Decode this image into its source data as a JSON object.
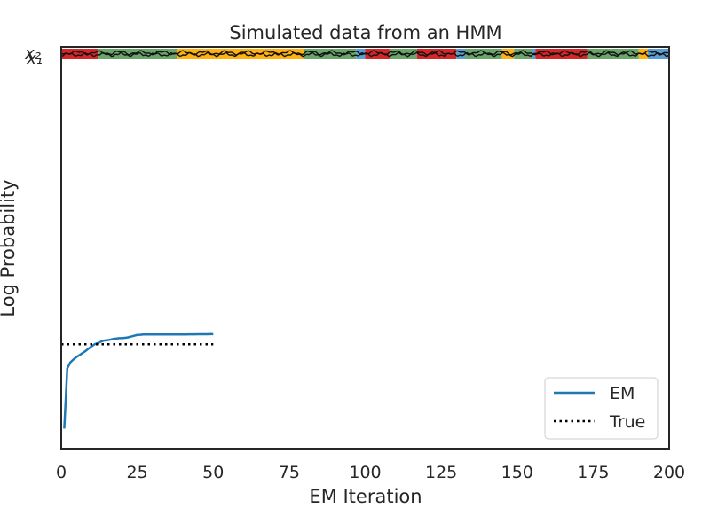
{
  "chart_data": {
    "type": "line",
    "title": "Simulated data from an HMM",
    "xlabel": "EM Iteration",
    "ylabel": "Log Probability",
    "xlim": [
      0,
      200
    ],
    "ylim": [
      0,
      1
    ],
    "xticks": [
      "0",
      "25",
      "50",
      "75",
      "100",
      "125",
      "150",
      "175",
      "200"
    ],
    "yticks_overlapping": [
      "$x_1$",
      "$x_2$"
    ],
    "yticks_display": [
      "x₁",
      "x₂"
    ],
    "grid": false,
    "legend_position": "lower-right",
    "series": [
      {
        "name": "EM",
        "style": "solid",
        "color": "#1f77b4",
        "x": [
          1,
          2,
          3,
          4,
          5,
          6,
          7,
          8,
          9,
          10,
          11,
          12,
          13,
          14,
          15,
          16,
          17,
          18,
          19,
          20,
          21,
          22,
          23,
          24,
          25,
          26,
          27,
          28,
          29,
          30,
          31,
          32,
          33,
          34,
          35,
          36,
          37,
          38,
          39,
          40,
          41,
          42,
          43,
          44,
          45,
          46,
          47,
          48,
          49,
          50
        ],
        "y": [
          0.05,
          0.2,
          0.215,
          0.222,
          0.228,
          0.233,
          0.238,
          0.243,
          0.249,
          0.255,
          0.26,
          0.263,
          0.266,
          0.269,
          0.27,
          0.271,
          0.273,
          0.274,
          0.275,
          0.275,
          0.276,
          0.277,
          0.279,
          0.281,
          0.283,
          0.2835,
          0.284,
          0.284,
          0.284,
          0.284,
          0.284,
          0.284,
          0.284,
          0.284,
          0.284,
          0.284,
          0.284,
          0.284,
          0.2842,
          0.2842,
          0.2844,
          0.2845,
          0.2846,
          0.2846,
          0.2847,
          0.2847,
          0.2848,
          0.2848,
          0.2849,
          0.285
        ]
      },
      {
        "name": "True",
        "style": "dotted",
        "color": "#000000",
        "x": [
          0,
          50
        ],
        "y": [
          0.26,
          0.26
        ]
      }
    ],
    "state_band": {
      "colors": [
        "#d62728",
        "#ffb20f",
        "#5a9fd4",
        "#6aa56a"
      ],
      "segments": [
        {
          "start": 0,
          "end": 12,
          "state": 0
        },
        {
          "start": 12,
          "end": 38,
          "state": 3
        },
        {
          "start": 38,
          "end": 55,
          "state": 1
        },
        {
          "start": 55,
          "end": 80,
          "state": 1
        },
        {
          "start": 80,
          "end": 97,
          "state": 3
        },
        {
          "start": 97,
          "end": 100,
          "state": 2
        },
        {
          "start": 100,
          "end": 108,
          "state": 0
        },
        {
          "start": 108,
          "end": 117,
          "state": 3
        },
        {
          "start": 117,
          "end": 130,
          "state": 0
        },
        {
          "start": 130,
          "end": 133,
          "state": 2
        },
        {
          "start": 133,
          "end": 145,
          "state": 3
        },
        {
          "start": 145,
          "end": 149,
          "state": 1
        },
        {
          "start": 149,
          "end": 155,
          "state": 3
        },
        {
          "start": 155,
          "end": 156,
          "state": 2
        },
        {
          "start": 156,
          "end": 173,
          "state": 0
        },
        {
          "start": 173,
          "end": 190,
          "state": 3
        },
        {
          "start": 190,
          "end": 193,
          "state": 1
        },
        {
          "start": 193,
          "end": 200,
          "state": 2
        }
      ]
    }
  }
}
